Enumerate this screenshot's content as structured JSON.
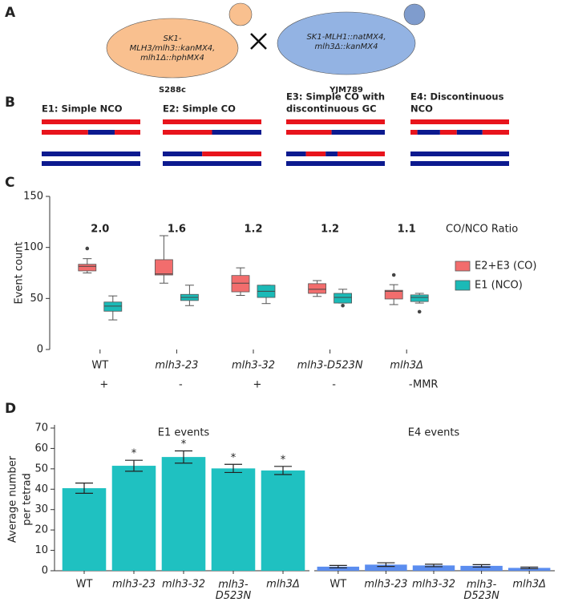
{
  "panels": [
    "A",
    "B",
    "C",
    "D"
  ],
  "strains": [
    {
      "genotype": [
        "SK1-",
        "MLH3/mlh3::kanMX4,",
        "mlh1Δ::hphMX4"
      ],
      "name": "S288c"
    },
    {
      "genotype": [
        "SK1-MLH1::natMX4,",
        "mlh3Δ::kanMX4"
      ],
      "name": "YJM789"
    }
  ],
  "schematics": [
    {
      "title": [
        "E1: Simple NCO"
      ]
    },
    {
      "title": [
        "E2: Simple CO"
      ]
    },
    {
      "title": [
        "E3: Simple CO with",
        "discontinuous GC"
      ]
    },
    {
      "title": [
        "E4: Discontinuous",
        "NCO"
      ]
    }
  ],
  "chart_data": [
    {
      "type": "box",
      "ylabel": "Event count",
      "categories": [
        "WT",
        "mlh3-23",
        "mlh3-32",
        "mlh3-D523N",
        "mlh3Δ"
      ],
      "ylim": [
        0,
        150
      ],
      "yticks": [
        0,
        50,
        100,
        150
      ],
      "legend_title": "CO/NCO Ratio",
      "legend": "right",
      "ratios": [
        2,
        1.6,
        1.2,
        1.2,
        1.1
      ],
      "ratio_labels": [
        "2.0",
        "1.6",
        "1.2",
        "1.2",
        "1.1"
      ],
      "mmr": [
        "+",
        "-",
        "+",
        "-",
        "-"
      ],
      "mmr_label": "MMR",
      "series": [
        {
          "name": "E2+E3 (CO)",
          "color": "#f26d6d",
          "boxes": [
            {
              "min": 75,
              "q1": 77,
              "median": 81.5,
              "q3": 83.5,
              "max": 89,
              "outliers": [
                99
              ]
            },
            {
              "min": 65,
              "q1": 73,
              "median": 74,
              "q3": 88,
              "max": 111.5,
              "outliers": []
            },
            {
              "min": 53,
              "q1": 56.5,
              "median": 65,
              "q3": 72.5,
              "max": 80,
              "outliers": []
            },
            {
              "min": 52,
              "q1": 55,
              "median": 59,
              "q3": 64.5,
              "max": 67.5,
              "outliers": []
            },
            {
              "min": 44,
              "q1": 49.5,
              "median": 57,
              "q3": 58,
              "max": 63.5,
              "outliers": [
                73
              ]
            }
          ]
        },
        {
          "name": "E1 (NCO)",
          "color": "#1bbab7",
          "boxes": [
            {
              "min": 29,
              "q1": 37.5,
              "median": 42.5,
              "q3": 46.5,
              "max": 52.5,
              "outliers": []
            },
            {
              "min": 43,
              "q1": 48,
              "median": 51,
              "q3": 54,
              "max": 63,
              "outliers": []
            },
            {
              "min": 45,
              "q1": 51,
              "median": 57,
              "q3": 63,
              "max": 63,
              "outliers": []
            },
            {
              "min": 45.5,
              "q1": 45.5,
              "median": 51,
              "q3": 55,
              "max": 59,
              "outliers": [
                43
              ]
            },
            {
              "min": 45.5,
              "q1": 47,
              "median": 51,
              "q3": 53.5,
              "max": 55,
              "outliers": [
                37
              ]
            }
          ]
        }
      ]
    },
    {
      "type": "bar",
      "title": "E1 events",
      "ylabel": [
        "Average number",
        "per tetrad"
      ],
      "categories": [
        "WT",
        "mlh3-23",
        "mlh3-32",
        "mlh3-D523N",
        "mlh3Δ"
      ],
      "values": [
        40.5,
        51.5,
        55.8,
        50.2,
        49.2
      ],
      "errors": [
        2.5,
        2.7,
        3,
        2,
        2
      ],
      "significance": [
        null,
        "*",
        "*",
        "*",
        "*"
      ],
      "color": "#1fc1c1",
      "ylim": [
        0,
        70
      ],
      "yticks": [
        0,
        10,
        20,
        30,
        40,
        50,
        60,
        70
      ]
    },
    {
      "type": "bar",
      "title": "E4 events",
      "categories": [
        "WT",
        "mlh3-23",
        "mlh3-32",
        "mlh3-D523N",
        "mlh3Δ"
      ],
      "values": [
        2,
        3,
        2.6,
        2.4,
        1.4
      ],
      "errors": [
        0.6,
        0.9,
        0.6,
        0.6,
        0.4
      ],
      "color": "#5b8def",
      "ylim": [
        0,
        70
      ]
    }
  ]
}
